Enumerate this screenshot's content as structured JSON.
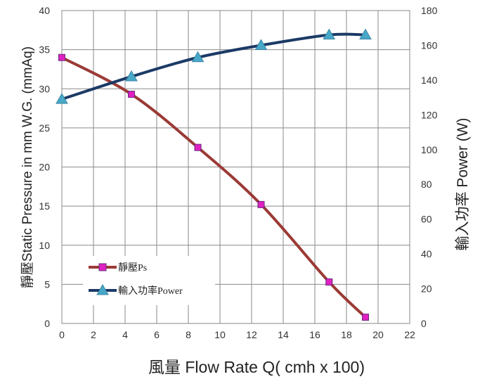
{
  "chart_data": {
    "type": "line",
    "title": "",
    "xlabel": "風量 Flow Rate Q( cmh x 100)",
    "ylabel_left": "靜壓Static Pressure in mm W.G. (mmAq)",
    "ylabel_right": "輸入功率 Power (W)",
    "xlim": [
      0,
      22
    ],
    "ylim_left": [
      0,
      40
    ],
    "ylim_right": [
      0,
      180
    ],
    "x_ticks": [
      "0",
      "2",
      "4",
      "6",
      "8",
      "10",
      "12",
      "14",
      "16",
      "18",
      "20",
      "22"
    ],
    "y_left_ticks": [
      "0",
      "5",
      "10",
      "15",
      "20",
      "25",
      "30",
      "35",
      "40"
    ],
    "y_right_ticks": [
      "0",
      "20",
      "40",
      "60",
      "80",
      "100",
      "120",
      "140",
      "160",
      "180"
    ],
    "grid": true,
    "legend_position": "bottom-left",
    "series": [
      {
        "name": "靜壓Ps",
        "axis": "left",
        "color": "#9b3a35",
        "marker": "square",
        "marker_color": "#e020c0",
        "x": [
          0,
          4.4,
          8.6,
          12.6,
          16.9,
          19.2
        ],
        "y": [
          34.0,
          29.3,
          22.5,
          15.2,
          5.3,
          0.8
        ]
      },
      {
        "name": "輸入功率Power",
        "axis": "right",
        "color": "#1b3a66",
        "marker": "triangle",
        "marker_color": "#47a8c8",
        "x": [
          0,
          4.4,
          8.6,
          12.6,
          16.9,
          19.2
        ],
        "y": [
          129,
          142,
          153,
          160,
          166,
          166
        ]
      }
    ]
  }
}
